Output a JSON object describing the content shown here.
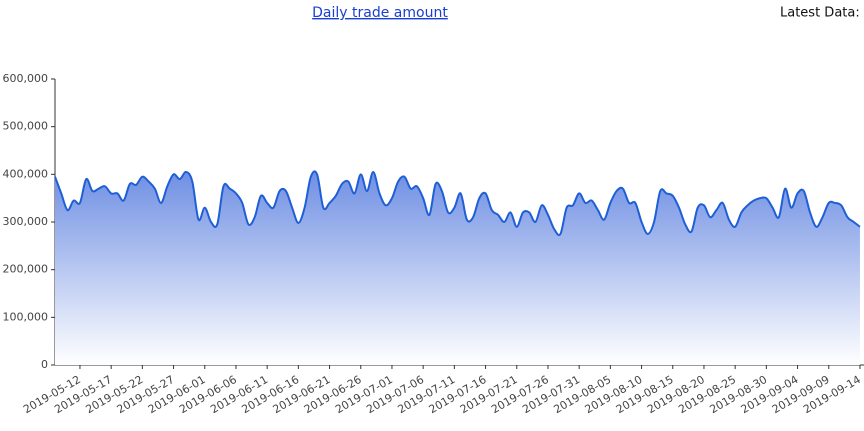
{
  "chart_data": {
    "type": "area",
    "title": "Daily trade amount",
    "latest_label": "Latest Data:",
    "categories": [
      null,
      null,
      null,
      null,
      "2019-05-12",
      null,
      null,
      null,
      null,
      "2019-05-17",
      null,
      null,
      null,
      null,
      "2019-05-22",
      null,
      null,
      null,
      null,
      "2019-05-27",
      null,
      null,
      null,
      null,
      "2019-06-01",
      null,
      null,
      null,
      null,
      "2019-06-06",
      null,
      null,
      null,
      null,
      "2019-06-11",
      null,
      null,
      null,
      null,
      "2019-06-16",
      null,
      null,
      null,
      null,
      "2019-06-21",
      null,
      null,
      null,
      null,
      "2019-06-26",
      null,
      null,
      null,
      null,
      "2019-07-01",
      null,
      null,
      null,
      null,
      "2019-07-06",
      null,
      null,
      null,
      null,
      "2019-07-11",
      null,
      null,
      null,
      null,
      "2019-07-16",
      null,
      null,
      null,
      null,
      "2019-07-21",
      null,
      null,
      null,
      null,
      "2019-07-26",
      null,
      null,
      null,
      null,
      "2019-07-31",
      null,
      null,
      null,
      null,
      "2019-08-05",
      null,
      null,
      null,
      null,
      "2019-08-10",
      null,
      null,
      null,
      null,
      "2019-08-15",
      null,
      null,
      null,
      null,
      "2019-08-20",
      null,
      null,
      null,
      null,
      "2019-08-25",
      null,
      null,
      null,
      null,
      "2019-08-30",
      null,
      null,
      null,
      null,
      "2019-09-04",
      null,
      null,
      null,
      null,
      "2019-09-09",
      null,
      null,
      null,
      null,
      "2019-09-14"
    ],
    "values": [
      395000,
      360000,
      325000,
      345000,
      340000,
      390000,
      365000,
      370000,
      375000,
      360000,
      360000,
      345000,
      380000,
      378000,
      395000,
      385000,
      370000,
      340000,
      375000,
      400000,
      390000,
      405000,
      385000,
      305000,
      330000,
      300000,
      295000,
      375000,
      370000,
      360000,
      340000,
      295000,
      310000,
      355000,
      340000,
      330000,
      365000,
      365000,
      330000,
      298000,
      330000,
      395000,
      400000,
      330000,
      340000,
      355000,
      380000,
      385000,
      360000,
      400000,
      365000,
      405000,
      360000,
      335000,
      350000,
      385000,
      395000,
      370000,
      375000,
      350000,
      315000,
      380000,
      365000,
      320000,
      330000,
      360000,
      305000,
      310000,
      350000,
      360000,
      325000,
      315000,
      300000,
      320000,
      290000,
      320000,
      320000,
      300000,
      335000,
      315000,
      285000,
      275000,
      330000,
      335000,
      360000,
      340000,
      345000,
      325000,
      305000,
      340000,
      365000,
      370000,
      340000,
      340000,
      300000,
      275000,
      300000,
      365000,
      360000,
      355000,
      330000,
      295000,
      280000,
      330000,
      335000,
      310000,
      325000,
      340000,
      305000,
      290000,
      320000,
      335000,
      345000,
      350000,
      350000,
      330000,
      310000,
      370000,
      330000,
      360000,
      365000,
      320000,
      290000,
      310000,
      340000,
      340000,
      335000,
      310000,
      300000,
      290000
    ],
    "color": "#1f5fd6",
    "ylim": [
      0,
      600000
    ],
    "yticks": [
      0,
      {
        "value": 100000,
        "label": "100,000"
      },
      {
        "value": 200000,
        "label": "200,000"
      },
      {
        "value": 300000,
        "label": "300,000"
      },
      {
        "value": 400000,
        "label": "400,000"
      },
      {
        "value": 500000,
        "label": "500,000"
      },
      {
        "value": 600000,
        "label": "600,000"
      }
    ],
    "grid": false
  }
}
